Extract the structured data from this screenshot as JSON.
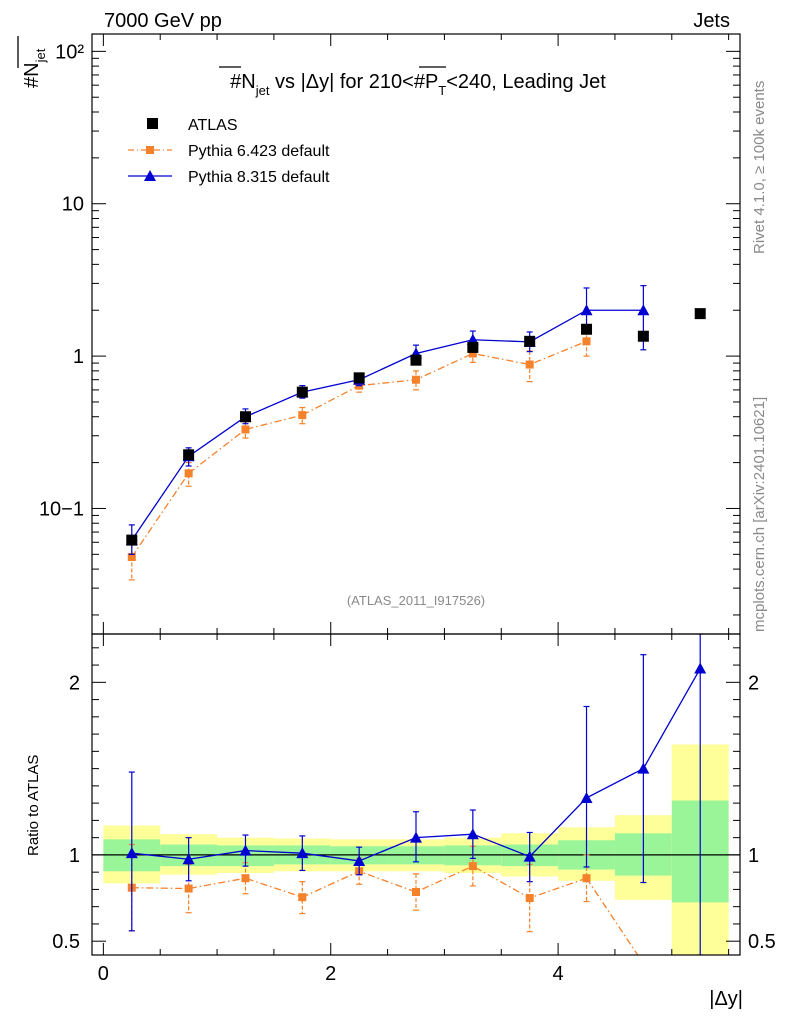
{
  "header": {
    "left": "7000 GeV pp",
    "right": "Jets",
    "title_prefix": "#",
    "title_n": "N",
    "title_jet_sub": "jet",
    "title_vs": " vs |Δy| for 210<#",
    "title_p": "P",
    "title_t_sub": "T",
    "title_suffix": "<240, Leading Jet",
    "ylabel_hash": "#",
    "ylabel_n": "N",
    "ylabel_sub": "jet",
    "analysis_id": "(ATLAS_2011_I917526)",
    "side_top": "Rivet 4.1.0, ≥ 100k events",
    "side_bottom": "mcplots.cern.ch [arXiv:2401.10621]"
  },
  "legend": {
    "atlas": "ATLAS",
    "py6": "Pythia 6.423 default",
    "py8": "Pythia 8.315 default"
  },
  "colors": {
    "atlas": "#000000",
    "py6": "#f5812a",
    "py8": "#0000d0",
    "band_inner": "#99f598",
    "band_outer": "#ffff99"
  },
  "chart_data": [
    {
      "type": "scatter",
      "title": "#Njet vs |Δy| for 210<#PT<240, Leading Jet",
      "xlabel": "|Δy|",
      "ylabel": "#Njet",
      "yscale": "log",
      "xlim": [
        -0.1,
        5.6
      ],
      "ylim": [
        0.015,
        130
      ],
      "x_ticks": [
        "0",
        "2",
        "4"
      ],
      "y_ticks": [
        "10−1",
        "1",
        "10",
        "10²"
      ],
      "series": [
        {
          "name": "ATLAS",
          "x": [
            0.25,
            0.75,
            1.25,
            1.75,
            2.25,
            2.75,
            3.25,
            3.75,
            4.25,
            4.75,
            5.25
          ],
          "values": [
            0.062,
            0.225,
            0.4,
            0.58,
            0.72,
            0.94,
            1.14,
            1.25,
            1.5,
            1.35,
            1.9
          ]
        },
        {
          "name": "Pythia 6.423 default",
          "x": [
            0.25,
            0.75,
            1.25,
            1.75,
            2.25,
            2.75,
            3.25,
            3.75,
            4.25,
            4.75
          ],
          "values": [
            0.048,
            0.17,
            0.33,
            0.41,
            0.64,
            0.7,
            1.04,
            0.88,
            1.25,
            0.0
          ],
          "err_lo": [
            0.034,
            0.14,
            0.29,
            0.36,
            0.58,
            0.6,
            0.91,
            0.68,
            1.0,
            0.0
          ],
          "err_hi": [
            0.058,
            0.2,
            0.37,
            0.46,
            0.7,
            0.8,
            1.17,
            1.08,
            1.5,
            0.0
          ]
        },
        {
          "name": "Pythia 8.315 default",
          "x": [
            0.25,
            0.75,
            1.25,
            1.75,
            2.25,
            2.75,
            3.25,
            3.75,
            4.25,
            4.75
          ],
          "values": [
            0.062,
            0.22,
            0.4,
            0.58,
            0.7,
            1.04,
            1.28,
            1.24,
            2.0,
            2.0
          ],
          "err_lo": [
            0.05,
            0.19,
            0.36,
            0.53,
            0.64,
            0.9,
            1.12,
            1.07,
            1.4,
            1.1
          ],
          "err_hi": [
            0.078,
            0.25,
            0.45,
            0.64,
            0.77,
            1.18,
            1.46,
            1.44,
            2.8,
            2.9
          ]
        }
      ]
    },
    {
      "type": "scatter",
      "title": "Ratio to ATLAS",
      "xlabel": "|Δy|",
      "ylabel": "Ratio to ATLAS",
      "xlim": [
        -0.1,
        5.6
      ],
      "ylim": [
        0.42,
        2.28
      ],
      "x_ticks": [
        "0",
        "2",
        "4"
      ],
      "y_ticks": [
        "0.5",
        "1",
        "2"
      ],
      "bands": {
        "x_edges": [
          0.0,
          0.5,
          1.0,
          1.5,
          2.0,
          2.5,
          3.0,
          3.5,
          4.0,
          4.5,
          5.0,
          5.5
        ],
        "inner_lo": [
          0.905,
          0.935,
          0.935,
          0.945,
          0.945,
          0.945,
          0.94,
          0.935,
          0.915,
          0.88,
          0.725
        ],
        "inner_hi": [
          1.09,
          1.06,
          1.055,
          1.055,
          1.05,
          1.05,
          1.055,
          1.06,
          1.085,
          1.125,
          1.315
        ],
        "outer_lo": [
          0.835,
          0.885,
          0.895,
          0.905,
          0.905,
          0.905,
          0.895,
          0.875,
          0.85,
          0.74,
          0.42
        ],
        "outer_hi": [
          1.17,
          1.12,
          1.1,
          1.095,
          1.09,
          1.09,
          1.1,
          1.125,
          1.16,
          1.23,
          1.64
        ]
      },
      "series": [
        {
          "name": "Pythia 6.423 default",
          "x": [
            0.25,
            0.75,
            1.25,
            1.75,
            2.25,
            2.75,
            3.25,
            3.75,
            4.25,
            4.7
          ],
          "values": [
            0.81,
            0.805,
            0.865,
            0.755,
            0.905,
            0.785,
            0.935,
            0.75,
            0.865,
            0.42
          ],
          "err_lo": [
            0.56,
            0.665,
            0.775,
            0.66,
            0.83,
            0.68,
            0.82,
            0.555,
            0.73,
            0.42
          ],
          "err_hi": [
            1.06,
            0.945,
            0.955,
            0.845,
            0.98,
            0.89,
            1.05,
            0.945,
            1.0,
            0.42
          ]
        },
        {
          "name": "Pythia 8.315 default",
          "x": [
            0.25,
            0.75,
            1.25,
            1.75,
            2.25,
            2.75,
            3.25,
            3.75,
            4.25,
            4.75,
            5.25
          ],
          "values": [
            1.01,
            0.975,
            1.025,
            1.01,
            0.965,
            1.1,
            1.12,
            0.99,
            1.33,
            1.5,
            2.08
          ],
          "err_lo": [
            0.56,
            0.85,
            0.935,
            0.91,
            0.885,
            0.96,
            0.98,
            0.845,
            0.93,
            0.84,
            0.42
          ],
          "err_hi": [
            1.48,
            1.1,
            1.115,
            1.11,
            1.045,
            1.25,
            1.26,
            1.13,
            1.86,
            2.16,
            2.28
          ]
        }
      ]
    }
  ]
}
